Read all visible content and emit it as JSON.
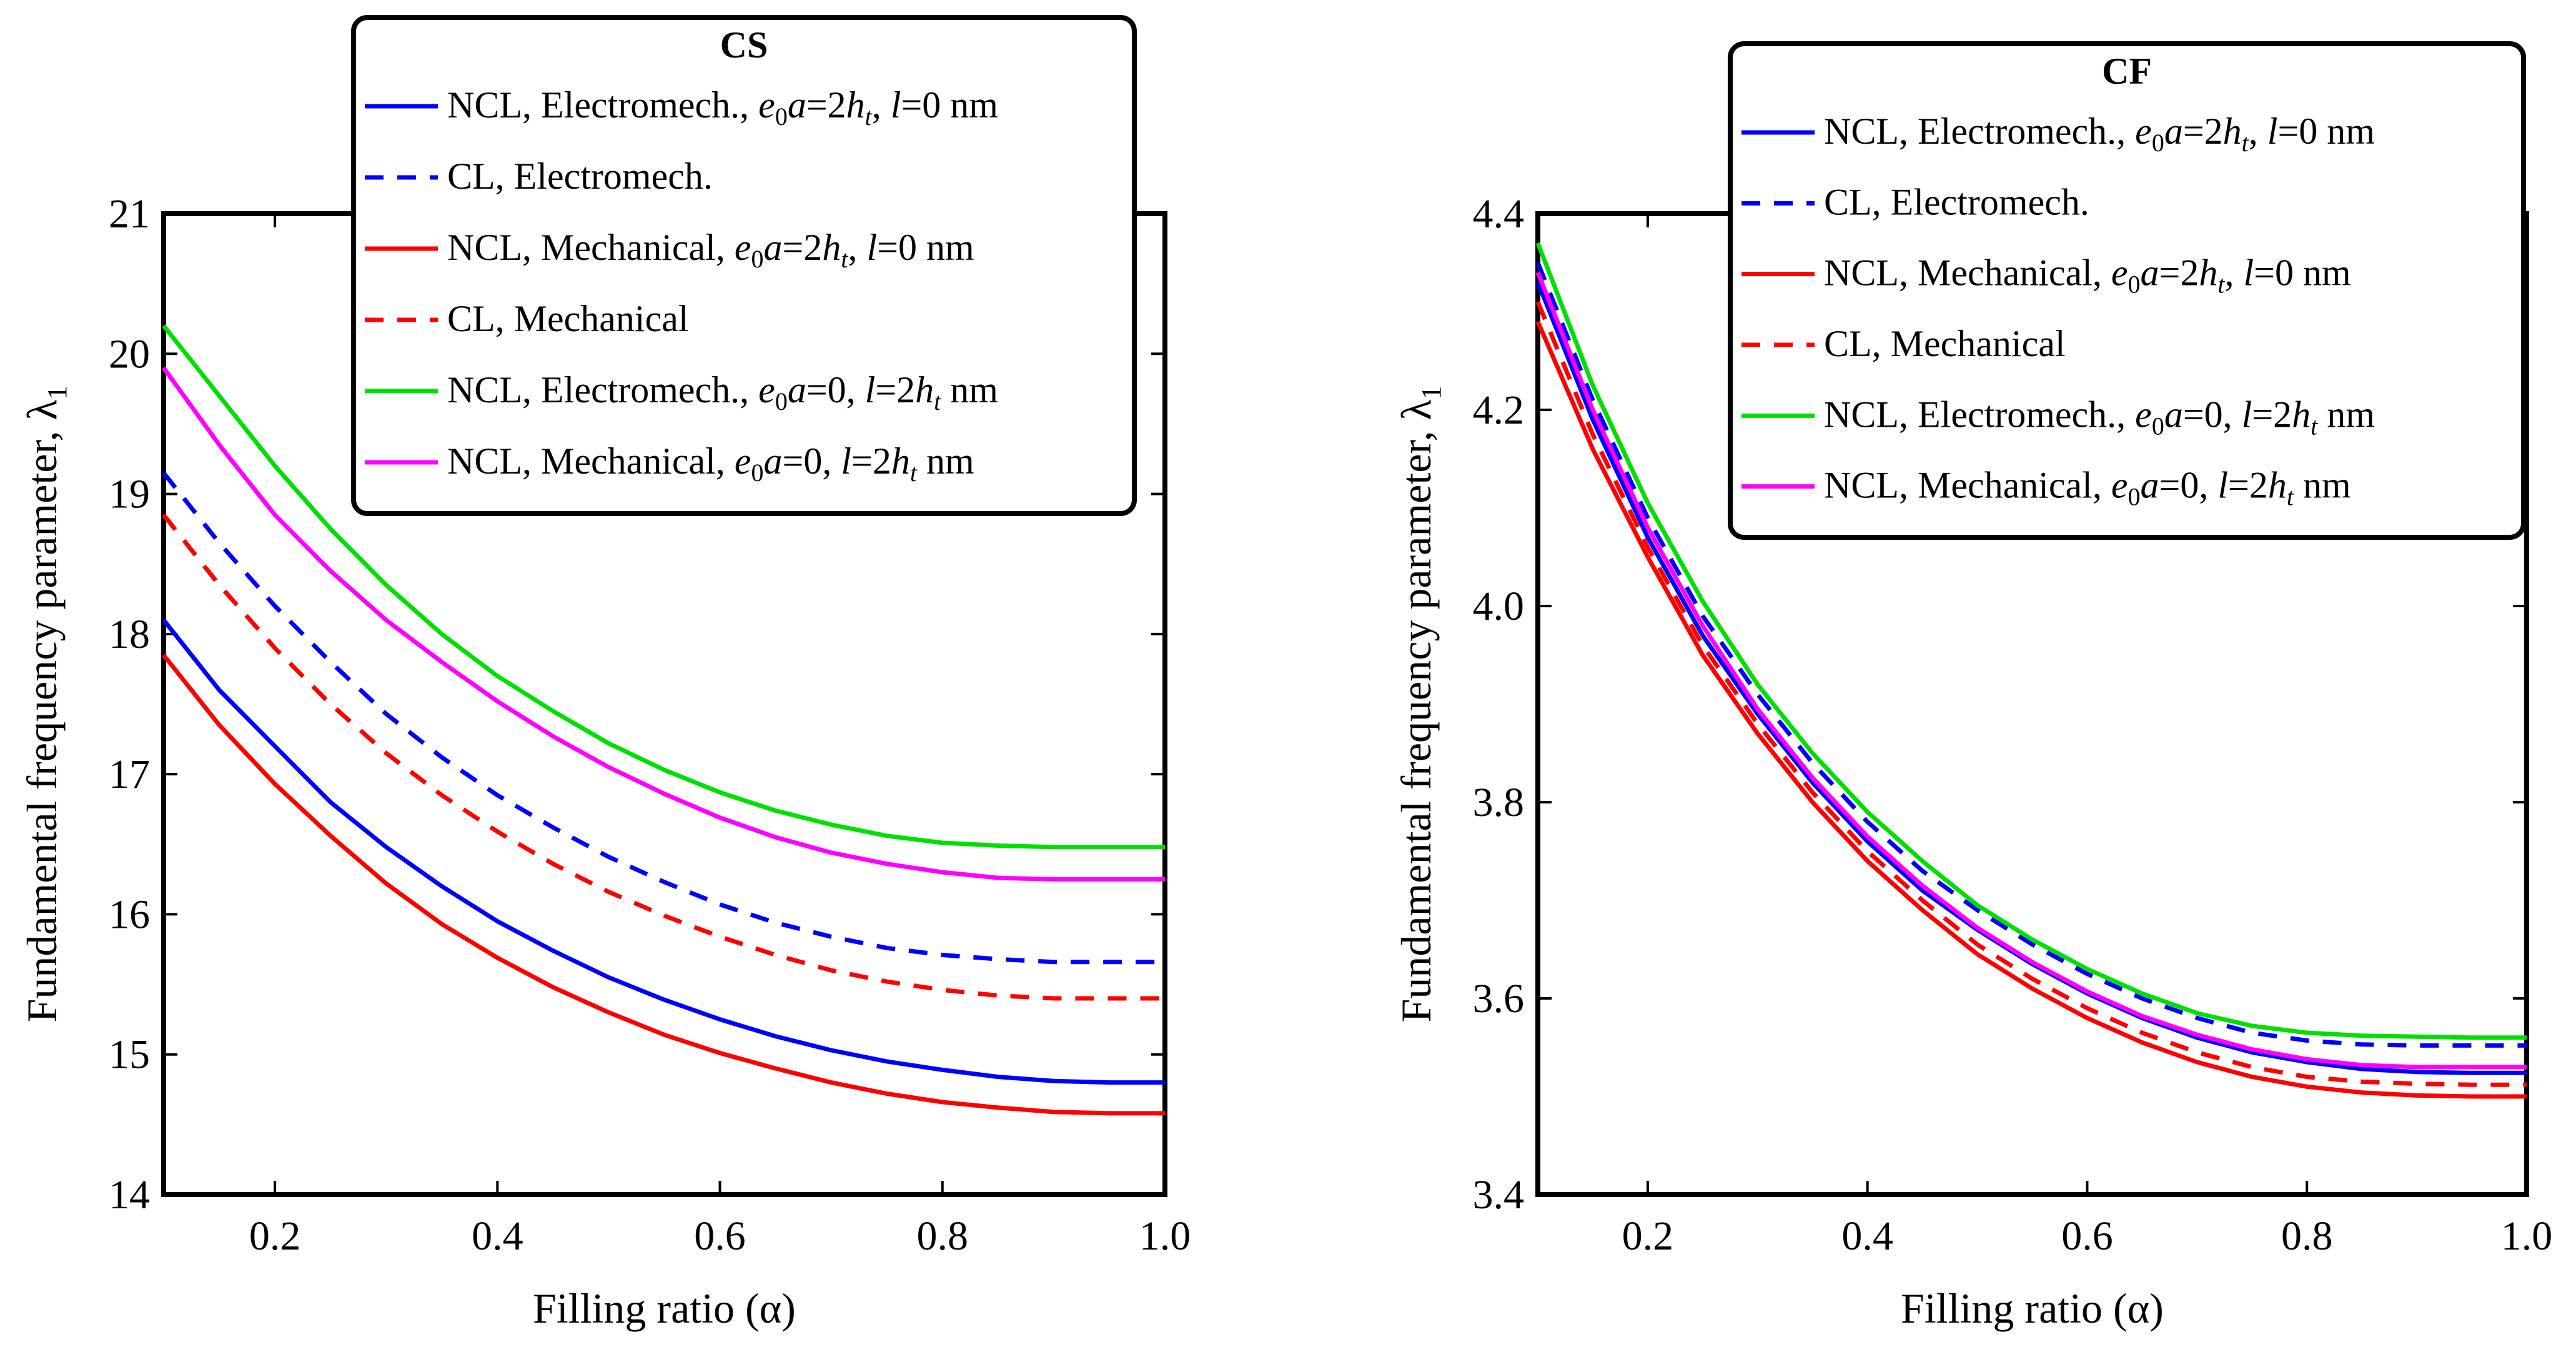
{
  "chart_data": [
    {
      "type": "line",
      "title": "CS",
      "xlabel": "Filling ratio (α)",
      "ylabel": "Fundamental frequency parameter, λ",
      "ylabel_subscript": "1",
      "xlim": [
        0.1,
        1.0
      ],
      "ylim": [
        14,
        21
      ],
      "xticks": [
        0.2,
        0.4,
        0.6,
        0.8,
        1.0
      ],
      "xtick_labels": [
        "0.2",
        "0.4",
        "0.6",
        "0.8",
        "1.0"
      ],
      "yticks": [
        14,
        15,
        16,
        17,
        18,
        19,
        20,
        21
      ],
      "ytick_labels": [
        "14",
        "15",
        "16",
        "17",
        "18",
        "19",
        "20",
        "21"
      ],
      "legend_position": "top-right, overlapping plot top",
      "x": [
        0.1,
        0.15,
        0.2,
        0.25,
        0.3,
        0.35,
        0.4,
        0.45,
        0.5,
        0.55,
        0.6,
        0.65,
        0.7,
        0.75,
        0.8,
        0.85,
        0.9,
        0.95,
        1.0
      ],
      "series": [
        {
          "name": "NCL, Electromech., e0a=2ht, l=0 nm",
          "color": "#0000ff",
          "dash": "solid",
          "legend": {
            "plain": "NCL, Electromech., ",
            "p1": "e",
            "sub1": "0",
            "p2": "a",
            "p3": "=2",
            "p4": "h",
            "sub2": "t",
            "p5": ", ",
            "p6": "l",
            "p7": "=0 nm"
          },
          "values": [
            18.1,
            17.6,
            17.2,
            16.8,
            16.48,
            16.2,
            15.95,
            15.74,
            15.55,
            15.39,
            15.25,
            15.13,
            15.03,
            14.95,
            14.89,
            14.84,
            14.81,
            14.8,
            14.8
          ]
        },
        {
          "name": "CL, Electromech.",
          "color": "#0000ff",
          "dash": "dashed",
          "legend": {
            "plain": "CL, Electromech."
          },
          "values": [
            19.15,
            18.65,
            18.2,
            17.8,
            17.43,
            17.12,
            16.85,
            16.62,
            16.41,
            16.23,
            16.07,
            15.94,
            15.84,
            15.76,
            15.71,
            15.68,
            15.66,
            15.66,
            15.66
          ]
        },
        {
          "name": "NCL, Mechanical, e0a=2ht, l=0 nm",
          "color": "#ff0000",
          "dash": "solid",
          "legend": {
            "plain": "NCL, Mechanical, ",
            "p1": "e",
            "sub1": "0",
            "p2": "a",
            "p3": "=2",
            "p4": "h",
            "sub2": "t",
            "p5": ", ",
            "p6": "l",
            "p7": "=0 nm"
          },
          "values": [
            17.85,
            17.35,
            16.93,
            16.56,
            16.22,
            15.93,
            15.69,
            15.48,
            15.3,
            15.14,
            15.01,
            14.9,
            14.8,
            14.72,
            14.66,
            14.62,
            14.59,
            14.58,
            14.58
          ]
        },
        {
          "name": "CL, Mechanical",
          "color": "#ff0000",
          "dash": "dashed",
          "legend": {
            "plain": "CL, Mechanical"
          },
          "values": [
            18.85,
            18.35,
            17.9,
            17.5,
            17.15,
            16.85,
            16.59,
            16.36,
            16.16,
            15.99,
            15.84,
            15.71,
            15.6,
            15.52,
            15.46,
            15.42,
            15.4,
            15.4,
            15.4
          ]
        },
        {
          "name": "NCL, Electromech., e0a=0, l=2ht nm",
          "color": "#00e000",
          "dash": "solid",
          "legend": {
            "plain": "NCL, Electromech., ",
            "p1": "e",
            "sub1": "0",
            "p2": "a",
            "p3": "=0, ",
            "p6": "l",
            "p8": "=2",
            "p4": "h",
            "sub2": "t",
            "p7": " nm"
          },
          "values": [
            20.2,
            19.7,
            19.2,
            18.75,
            18.35,
            18.0,
            17.7,
            17.45,
            17.22,
            17.03,
            16.87,
            16.74,
            16.64,
            16.56,
            16.51,
            16.49,
            16.48,
            16.48,
            16.48
          ]
        },
        {
          "name": "NCL, Mechanical, e0a=0, l=2ht nm",
          "color": "#ff00ff",
          "dash": "solid",
          "legend": {
            "plain": "NCL, Mechanical, ",
            "p1": "e",
            "sub1": "0",
            "p2": "a",
            "p3": "=0, ",
            "p6": "l",
            "p8": "=2",
            "p4": "h",
            "sub2": "t",
            "p7": " nm"
          },
          "values": [
            19.9,
            19.35,
            18.85,
            18.45,
            18.1,
            17.8,
            17.52,
            17.27,
            17.05,
            16.86,
            16.69,
            16.55,
            16.44,
            16.36,
            16.3,
            16.26,
            16.25,
            16.25,
            16.25
          ]
        }
      ]
    },
    {
      "type": "line",
      "title": "CF",
      "xlabel": "Filling ratio (α)",
      "ylabel": "Fundamental frequency parameter, λ",
      "ylabel_subscript": "1",
      "xlim": [
        0.1,
        1.0
      ],
      "ylim": [
        3.4,
        4.4
      ],
      "xticks": [
        0.2,
        0.4,
        0.6,
        0.8,
        1.0
      ],
      "xtick_labels": [
        "0.2",
        "0.4",
        "0.6",
        "0.8",
        "1.0"
      ],
      "yticks": [
        3.4,
        3.6,
        3.8,
        4.0,
        4.2,
        4.4
      ],
      "ytick_labels": [
        "3.4",
        "3.6",
        "3.8",
        "4.0",
        "4.2",
        "4.4"
      ],
      "legend_position": "top-right, overlapping plot top",
      "x": [
        0.1,
        0.15,
        0.2,
        0.25,
        0.3,
        0.35,
        0.4,
        0.45,
        0.5,
        0.55,
        0.6,
        0.65,
        0.7,
        0.75,
        0.8,
        0.85,
        0.9,
        0.95,
        1.0
      ],
      "series": [
        {
          "name": "NCL, Electromech., e0a=2ht, l=0 nm",
          "color": "#0000ff",
          "dash": "solid",
          "legend": {
            "plain": "NCL, Electromech., ",
            "p1": "e",
            "sub1": "0",
            "p2": "a",
            "p3": "=2",
            "p4": "h",
            "sub2": "t",
            "p5": ", ",
            "p6": "l",
            "p7": "=0 nm"
          },
          "values": [
            4.33,
            4.19,
            4.07,
            3.97,
            3.89,
            3.82,
            3.76,
            3.71,
            3.67,
            3.635,
            3.605,
            3.58,
            3.56,
            3.545,
            3.535,
            3.528,
            3.525,
            3.524,
            3.524
          ]
        },
        {
          "name": "CL, Electromech.",
          "color": "#0000ff",
          "dash": "dashed",
          "legend": {
            "plain": "CL, Electromech."
          },
          "values": [
            4.35,
            4.21,
            4.09,
            3.99,
            3.91,
            3.84,
            3.78,
            3.73,
            3.69,
            3.655,
            3.625,
            3.6,
            3.58,
            3.565,
            3.557,
            3.553,
            3.552,
            3.552,
            3.552
          ]
        },
        {
          "name": "NCL, Mechanical, e0a=2ht, l=0 nm",
          "color": "#ff0000",
          "dash": "solid",
          "legend": {
            "plain": "NCL, Mechanical, ",
            "p1": "e",
            "sub1": "0",
            "p2": "a",
            "p3": "=2",
            "p4": "h",
            "sub2": "t",
            "p5": ", ",
            "p6": "l",
            "p7": "=0 nm"
          },
          "values": [
            4.29,
            4.16,
            4.05,
            3.95,
            3.87,
            3.8,
            3.74,
            3.69,
            3.645,
            3.61,
            3.58,
            3.555,
            3.535,
            3.52,
            3.51,
            3.504,
            3.501,
            3.5,
            3.5
          ]
        },
        {
          "name": "CL, Mechanical",
          "color": "#ff0000",
          "dash": "dashed",
          "legend": {
            "plain": "CL, Mechanical"
          },
          "values": [
            4.31,
            4.175,
            4.06,
            3.96,
            3.88,
            3.81,
            3.75,
            3.7,
            3.655,
            3.62,
            3.59,
            3.565,
            3.545,
            3.53,
            3.52,
            3.515,
            3.513,
            3.512,
            3.512
          ]
        },
        {
          "name": "NCL, Electromech., e0a=0, l=2ht nm",
          "color": "#00e000",
          "dash": "solid",
          "legend": {
            "plain": "NCL, Electromech., ",
            "p1": "e",
            "sub1": "0",
            "p2": "a",
            "p3": "=0, ",
            "p6": "l",
            "p8": "=2",
            "p4": "h",
            "sub2": "t",
            "p7": " nm"
          },
          "values": [
            4.37,
            4.225,
            4.105,
            4.005,
            3.92,
            3.85,
            3.79,
            3.74,
            3.695,
            3.66,
            3.63,
            3.605,
            3.585,
            3.572,
            3.565,
            3.562,
            3.561,
            3.56,
            3.56
          ]
        },
        {
          "name": "NCL, Mechanical, e0a=0, l=2ht nm",
          "color": "#ff00ff",
          "dash": "solid",
          "legend": {
            "plain": "NCL, Mechanical, ",
            "p1": "e",
            "sub1": "0",
            "p2": "a",
            "p3": "=0, ",
            "p6": "l",
            "p8": "=2",
            "p4": "h",
            "sub2": "t",
            "p7": " nm"
          },
          "values": [
            4.34,
            4.2,
            4.08,
            3.98,
            3.895,
            3.825,
            3.765,
            3.715,
            3.672,
            3.637,
            3.607,
            3.582,
            3.563,
            3.548,
            3.538,
            3.532,
            3.53,
            3.53,
            3.53
          ]
        }
      ]
    }
  ]
}
